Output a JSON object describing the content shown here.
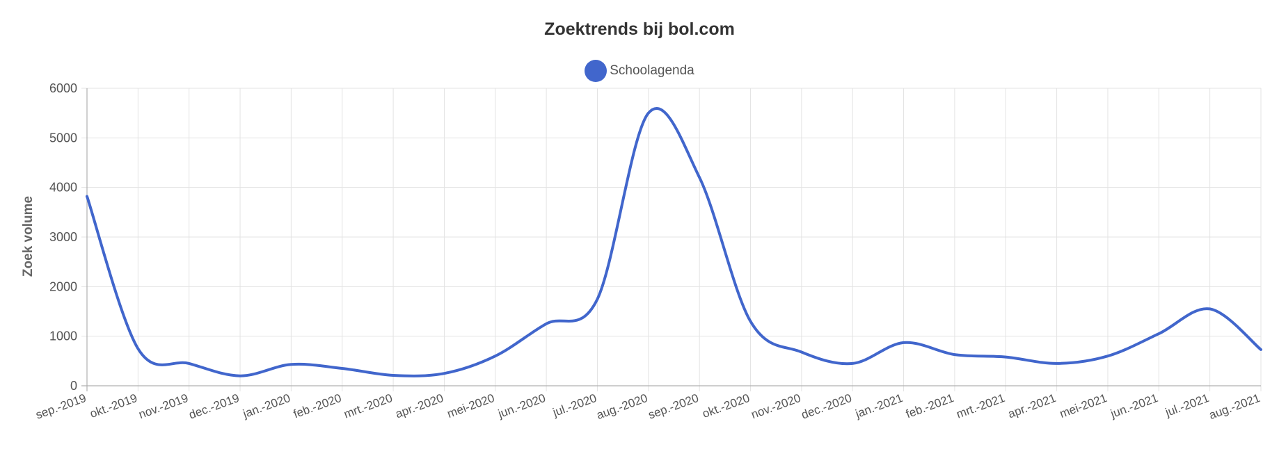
{
  "chart_data": {
    "type": "line",
    "title": "Zoektrends bij bol.com",
    "ylabel": "Zoek volume",
    "xlabel": "",
    "ylim": [
      0,
      6000
    ],
    "yticks": [
      "0",
      "1000",
      "2000",
      "3000",
      "4000",
      "5000",
      "6000"
    ],
    "grid": true,
    "legend": "top-center",
    "categories": [
      "sep.-2019",
      "okt.-2019",
      "nov.-2019",
      "dec.-2019",
      "jan.-2020",
      "feb.-2020",
      "mrt.-2020",
      "apr.-2020",
      "mei-2020",
      "jun.-2020",
      "jul.-2020",
      "aug.-2020",
      "sep.-2020",
      "okt.-2020",
      "nov.-2020",
      "dec.-2020",
      "jan.-2021",
      "feb.-2021",
      "mrt.-2021",
      "apr.-2021",
      "mei-2021",
      "jun.-2021",
      "jul.-2021",
      "aug.-2021"
    ],
    "series": [
      {
        "name": "Schoolagenda",
        "color": "#4166cc",
        "values": [
          3820,
          750,
          450,
          200,
          430,
          350,
          210,
          250,
          600,
          1250,
          1750,
          5500,
          4200,
          1300,
          680,
          450,
          870,
          630,
          580,
          450,
          600,
          1050,
          1550,
          730
        ]
      }
    ]
  }
}
